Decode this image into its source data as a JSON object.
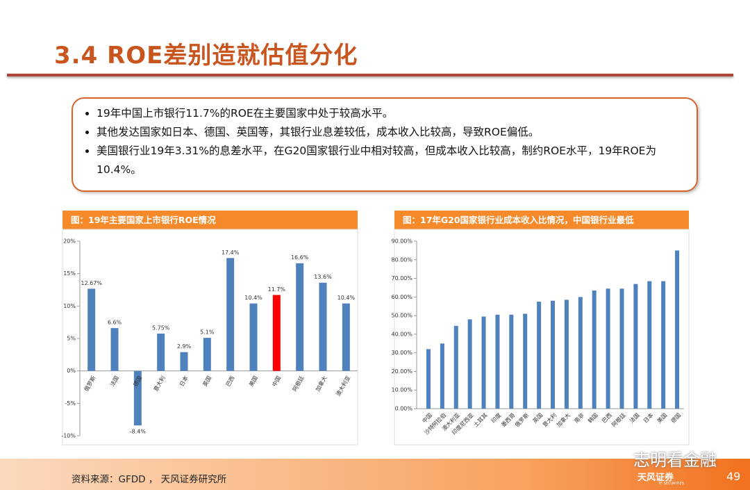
{
  "header": {
    "title": "3.4 ROE差别造就估值分化"
  },
  "bullets": [
    "19年中国上市银行11.7%的ROE在主要国家中处于较高水平。",
    "其他发达国家如日本、德国、英国等，其银行业息差较低，成本收入比较高，导致ROE偏低。",
    "美国银行业19年3.31%的息差水平，在G20国家银行业中相对较高，但成本收入比较高，制约ROE水平，19年ROE为10.4%。"
  ],
  "chart_data": [
    {
      "type": "bar",
      "title": "图：19年主要国家上市银行ROE情况",
      "categories": [
        "俄罗斯",
        "法国",
        "德国",
        "意大利",
        "日本",
        "英国",
        "巴西",
        "美国",
        "中国",
        "阿根廷",
        "加拿大",
        "澳大利亚"
      ],
      "values": [
        12.67,
        6.6,
        -8.4,
        5.75,
        2.9,
        5.1,
        17.4,
        10.4,
        11.7,
        16.6,
        13.6,
        10.4
      ],
      "value_labels": [
        "12.67%",
        "6.6%",
        "-8.4%",
        "5.75%",
        "2.9%",
        "5.1%",
        "17.4%",
        "10.4%",
        "11.7%",
        "16.6%",
        "13.6%",
        "10.4%"
      ],
      "colors": [
        "#4f81bd",
        "#4f81bd",
        "#4f81bd",
        "#4f81bd",
        "#4f81bd",
        "#4f81bd",
        "#4f81bd",
        "#4f81bd",
        "#ff0000",
        "#4f81bd",
        "#4f81bd",
        "#4f81bd"
      ],
      "ylim": [
        -10,
        20
      ],
      "yticks": [
        {
          "value": -10,
          "label": "-10%"
        },
        {
          "value": -5,
          "label": "-5%"
        },
        {
          "value": 0,
          "label": "0%"
        },
        {
          "value": 5,
          "label": "5%"
        },
        {
          "value": 10,
          "label": "10%"
        },
        {
          "value": 15,
          "label": "15%"
        },
        {
          "value": 20,
          "label": "20%"
        }
      ],
      "grid": false
    },
    {
      "type": "bar",
      "title": "图：17年G20国家银行业成本收入比情况，中国银行业最低",
      "categories": [
        "中国",
        "沙特阿拉伯",
        "澳大利亚",
        "印度尼西亚",
        "土耳其",
        "印度",
        "墨西哥",
        "俄罗斯",
        "英国",
        "意大利",
        "加拿大",
        "南非",
        "韩国",
        "巴西",
        "阿根廷",
        "法国",
        "日本",
        "美国",
        "德国"
      ],
      "values": [
        32,
        35,
        44.5,
        48,
        49.5,
        50.5,
        50.5,
        51,
        57.5,
        58,
        58.5,
        60,
        63.5,
        64.5,
        64.5,
        67,
        68.5,
        68.5,
        85
      ],
      "color": "#4f81bd",
      "ylim": [
        0,
        90
      ],
      "yticks": [
        {
          "value": 0,
          "label": "0.00%"
        },
        {
          "value": 10,
          "label": "10.00%"
        },
        {
          "value": 20,
          "label": "20.00%"
        },
        {
          "value": 30,
          "label": "30.00%"
        },
        {
          "value": 40,
          "label": "40.00%"
        },
        {
          "value": 50,
          "label": "50.00%"
        },
        {
          "value": 60,
          "label": "60.00%"
        },
        {
          "value": 70,
          "label": "70.00%"
        },
        {
          "value": 80,
          "label": "80.00%"
        },
        {
          "value": 90,
          "label": "90.00%"
        }
      ],
      "grid": false
    }
  ],
  "footer": {
    "source": "资料来源：GFDD ， 天风证券研究所",
    "watermark": "志明看金融",
    "logo": "天风证券",
    "logo_sub": "TF SECURITIES",
    "page": "49"
  }
}
